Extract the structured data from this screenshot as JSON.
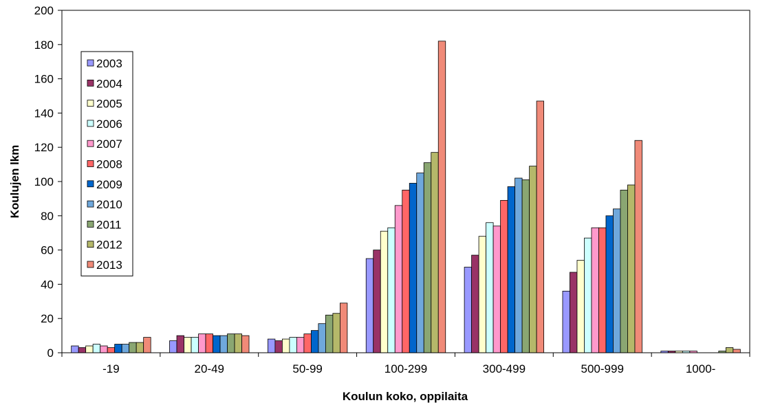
{
  "chart_data": {
    "type": "bar",
    "title": "",
    "xlabel": "Koulun koko, oppilaita",
    "ylabel": "Koulujen lkm",
    "ylim": [
      0,
      200
    ],
    "yticks": [
      0,
      20,
      40,
      60,
      80,
      100,
      120,
      140,
      160,
      180,
      200
    ],
    "grid": false,
    "legend_position": "top-left",
    "categories": [
      "-19",
      "20-49",
      "50-99",
      "100-299",
      "300-499",
      "500-999",
      "1000-"
    ],
    "series": [
      {
        "name": "2003",
        "color": "#9999ff",
        "values": [
          4,
          7,
          8,
          55,
          50,
          36,
          1
        ]
      },
      {
        "name": "2004",
        "color": "#993366",
        "values": [
          3,
          10,
          7,
          60,
          57,
          47,
          1
        ]
      },
      {
        "name": "2005",
        "color": "#ffffcc",
        "values": [
          4,
          9,
          8,
          71,
          68,
          54,
          1
        ]
      },
      {
        "name": "2006",
        "color": "#ccffff",
        "values": [
          5,
          9,
          9,
          73,
          76,
          67,
          1
        ]
      },
      {
        "name": "2007",
        "color": "#ff99cc",
        "values": [
          4,
          11,
          9,
          86,
          74,
          73,
          1
        ]
      },
      {
        "name": "2008",
        "color": "#ff6666",
        "values": [
          3,
          11,
          11,
          95,
          89,
          73,
          0
        ]
      },
      {
        "name": "2009",
        "color": "#0066cc",
        "values": [
          5,
          10,
          13,
          99,
          97,
          80,
          0
        ]
      },
      {
        "name": "2010",
        "color": "#6fa8dc",
        "values": [
          5,
          10,
          17,
          105,
          102,
          84,
          0
        ]
      },
      {
        "name": "2011",
        "color": "#8aa672",
        "values": [
          6,
          11,
          22,
          111,
          101,
          95,
          1
        ]
      },
      {
        "name": "2012",
        "color": "#b5b86a",
        "values": [
          6,
          11,
          23,
          117,
          109,
          98,
          3
        ]
      },
      {
        "name": "2013",
        "color": "#f08a78",
        "values": [
          9,
          10,
          29,
          182,
          147,
          124,
          2
        ]
      }
    ]
  }
}
